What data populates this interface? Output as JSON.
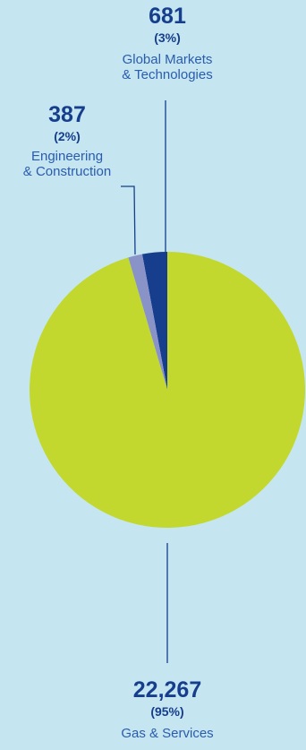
{
  "chart_data": {
    "type": "pie",
    "title": "",
    "slices": [
      {
        "value": 681,
        "value_label": "681",
        "percent_label": "(3%)",
        "label_line1": "Global Markets",
        "label_line2": "& Technologies",
        "color": "#163e8c"
      },
      {
        "value": 387,
        "value_label": "387",
        "percent_label": "(2%)",
        "label_line1": "Engineering",
        "label_line2": "& Construction",
        "color": "#8a93c8"
      },
      {
        "value": 22267,
        "value_label": "22,267",
        "percent_label": "(95%)",
        "label_line1": "Gas & Services",
        "label_line2": "",
        "color": "#c2d82f"
      }
    ]
  },
  "colors": {
    "background": "#c5e6f0",
    "leader_line": "#163e8c"
  }
}
